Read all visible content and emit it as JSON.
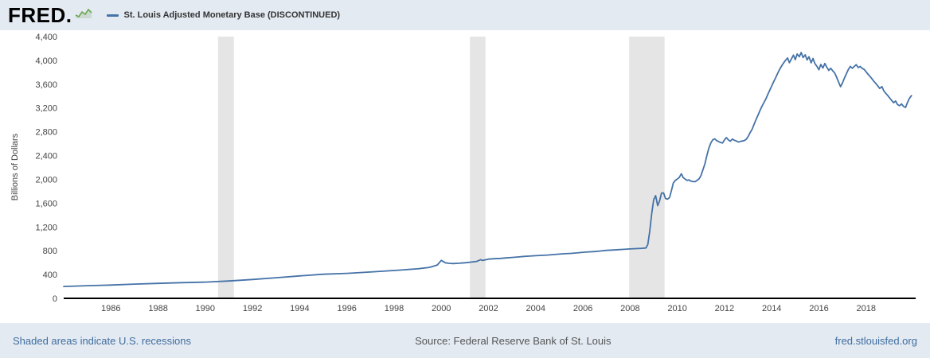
{
  "header": {
    "logo_text": "FRED.",
    "legend": {
      "series_label": "St. Louis Adjusted Monetary Base (DISCONTINUED)"
    }
  },
  "chart_data": {
    "type": "line",
    "title": "St. Louis Adjusted Monetary Base (DISCONTINUED)",
    "ylabel": "Billions of Dollars",
    "xlabel": "",
    "x_range": [
      1984,
      2020.1
    ],
    "ylim": [
      0,
      4400
    ],
    "grid": false,
    "legend_position": "top-left",
    "line_color": "#4572a7",
    "y_ticks": [
      0,
      400,
      800,
      1200,
      1600,
      2000,
      2400,
      2800,
      3200,
      3600,
      4000,
      4400
    ],
    "y_tick_labels": [
      "0",
      "400",
      "800",
      "1,200",
      "1,600",
      "2,000",
      "2,400",
      "2,800",
      "3,200",
      "3,600",
      "4,000",
      "4,400"
    ],
    "x_ticks": [
      1986,
      1988,
      1990,
      1992,
      1994,
      1996,
      1998,
      2000,
      2002,
      2004,
      2006,
      2008,
      2010,
      2012,
      2014,
      2016,
      2018
    ],
    "recession_bands": [
      [
        1990.54,
        1991.21
      ],
      [
        2001.21,
        2001.87
      ],
      [
        2007.96,
        2009.46
      ]
    ],
    "series": [
      {
        "name": "St. Louis Adjusted Monetary Base (DISCONTINUED)",
        "points": [
          [
            1984,
            199
          ],
          [
            1985,
            212
          ],
          [
            1986,
            224
          ],
          [
            1987,
            239
          ],
          [
            1988,
            252
          ],
          [
            1989,
            263
          ],
          [
            1990,
            273
          ],
          [
            1991,
            291
          ],
          [
            1992,
            317
          ],
          [
            1993,
            347
          ],
          [
            1994,
            377
          ],
          [
            1995,
            405
          ],
          [
            1996,
            420
          ],
          [
            1997,
            443
          ],
          [
            1998,
            468
          ],
          [
            1999,
            496
          ],
          [
            1999.5,
            520
          ],
          [
            1999.83,
            560
          ],
          [
            2000,
            638
          ],
          [
            2000.17,
            598
          ],
          [
            2000.33,
            588
          ],
          [
            2000.5,
            584
          ],
          [
            2000.75,
            590
          ],
          [
            2001,
            598
          ],
          [
            2001.25,
            608
          ],
          [
            2001.5,
            620
          ],
          [
            2001.67,
            650
          ],
          [
            2001.75,
            636
          ],
          [
            2002,
            659
          ],
          [
            2002.25,
            666
          ],
          [
            2002.5,
            672
          ],
          [
            2002.75,
            679
          ],
          [
            2003,
            688
          ],
          [
            2003.25,
            696
          ],
          [
            2003.5,
            705
          ],
          [
            2003.75,
            710
          ],
          [
            2004,
            717
          ],
          [
            2004.25,
            722
          ],
          [
            2004.5,
            728
          ],
          [
            2004.75,
            736
          ],
          [
            2005,
            744
          ],
          [
            2005.25,
            750
          ],
          [
            2005.5,
            756
          ],
          [
            2005.75,
            764
          ],
          [
            2006,
            775
          ],
          [
            2006.25,
            781
          ],
          [
            2006.5,
            787
          ],
          [
            2006.75,
            796
          ],
          [
            2007,
            806
          ],
          [
            2007.25,
            812
          ],
          [
            2007.5,
            818
          ],
          [
            2007.75,
            824
          ],
          [
            2008,
            831
          ],
          [
            2008.25,
            836
          ],
          [
            2008.5,
            841
          ],
          [
            2008.67,
            847
          ],
          [
            2008.75,
            905
          ],
          [
            2008.83,
            1128
          ],
          [
            2008.92,
            1435
          ],
          [
            2009,
            1660
          ],
          [
            2009.08,
            1726
          ],
          [
            2009.17,
            1558
          ],
          [
            2009.25,
            1640
          ],
          [
            2009.33,
            1770
          ],
          [
            2009.42,
            1772
          ],
          [
            2009.5,
            1680
          ],
          [
            2009.58,
            1666
          ],
          [
            2009.67,
            1694
          ],
          [
            2009.75,
            1808
          ],
          [
            2009.83,
            1938
          ],
          [
            2009.92,
            1985
          ],
          [
            2010,
            2005
          ],
          [
            2010.08,
            2030
          ],
          [
            2010.17,
            2094
          ],
          [
            2010.25,
            2030
          ],
          [
            2010.33,
            2005
          ],
          [
            2010.42,
            1983
          ],
          [
            2010.5,
            1992
          ],
          [
            2010.58,
            1970
          ],
          [
            2010.67,
            1963
          ],
          [
            2010.75,
            1960
          ],
          [
            2010.83,
            1980
          ],
          [
            2010.92,
            2008
          ],
          [
            2011,
            2062
          ],
          [
            2011.08,
            2152
          ],
          [
            2011.17,
            2260
          ],
          [
            2011.25,
            2396
          ],
          [
            2011.33,
            2518
          ],
          [
            2011.42,
            2610
          ],
          [
            2011.5,
            2664
          ],
          [
            2011.58,
            2682
          ],
          [
            2011.67,
            2652
          ],
          [
            2011.75,
            2636
          ],
          [
            2011.83,
            2620
          ],
          [
            2011.92,
            2612
          ],
          [
            2012,
            2664
          ],
          [
            2012.08,
            2702
          ],
          [
            2012.17,
            2662
          ],
          [
            2012.25,
            2642
          ],
          [
            2012.33,
            2678
          ],
          [
            2012.42,
            2656
          ],
          [
            2012.5,
            2646
          ],
          [
            2012.58,
            2628
          ],
          [
            2012.67,
            2636
          ],
          [
            2012.75,
            2645
          ],
          [
            2012.83,
            2650
          ],
          [
            2012.92,
            2674
          ],
          [
            2013,
            2720
          ],
          [
            2013.08,
            2780
          ],
          [
            2013.17,
            2843
          ],
          [
            2013.25,
            2923
          ],
          [
            2013.33,
            3000
          ],
          [
            2013.42,
            3080
          ],
          [
            2013.5,
            3155
          ],
          [
            2013.58,
            3222
          ],
          [
            2013.67,
            3290
          ],
          [
            2013.75,
            3350
          ],
          [
            2013.83,
            3425
          ],
          [
            2013.92,
            3500
          ],
          [
            2014,
            3570
          ],
          [
            2014.08,
            3640
          ],
          [
            2014.17,
            3710
          ],
          [
            2014.25,
            3780
          ],
          [
            2014.33,
            3845
          ],
          [
            2014.42,
            3905
          ],
          [
            2014.5,
            3955
          ],
          [
            2014.58,
            3998
          ],
          [
            2014.67,
            4042
          ],
          [
            2014.75,
            3962
          ],
          [
            2014.83,
            4022
          ],
          [
            2014.92,
            4088
          ],
          [
            2015,
            4012
          ],
          [
            2015.08,
            4108
          ],
          [
            2015.17,
            4062
          ],
          [
            2015.25,
            4132
          ],
          [
            2015.33,
            4048
          ],
          [
            2015.42,
            4092
          ],
          [
            2015.5,
            4008
          ],
          [
            2015.58,
            4062
          ],
          [
            2015.67,
            3958
          ],
          [
            2015.75,
            4032
          ],
          [
            2015.83,
            3948
          ],
          [
            2015.92,
            3898
          ],
          [
            2016,
            3842
          ],
          [
            2016.08,
            3932
          ],
          [
            2016.17,
            3872
          ],
          [
            2016.25,
            3948
          ],
          [
            2016.33,
            3888
          ],
          [
            2016.42,
            3832
          ],
          [
            2016.5,
            3868
          ],
          [
            2016.58,
            3828
          ],
          [
            2016.67,
            3788
          ],
          [
            2016.75,
            3718
          ],
          [
            2016.83,
            3638
          ],
          [
            2016.92,
            3558
          ],
          [
            2017,
            3622
          ],
          [
            2017.08,
            3702
          ],
          [
            2017.17,
            3782
          ],
          [
            2017.25,
            3848
          ],
          [
            2017.33,
            3898
          ],
          [
            2017.42,
            3868
          ],
          [
            2017.5,
            3898
          ],
          [
            2017.58,
            3928
          ],
          [
            2017.67,
            3878
          ],
          [
            2017.75,
            3898
          ],
          [
            2017.83,
            3868
          ],
          [
            2017.92,
            3848
          ],
          [
            2018,
            3808
          ],
          [
            2018.08,
            3768
          ],
          [
            2018.17,
            3728
          ],
          [
            2018.25,
            3688
          ],
          [
            2018.33,
            3648
          ],
          [
            2018.42,
            3608
          ],
          [
            2018.5,
            3568
          ],
          [
            2018.58,
            3528
          ],
          [
            2018.67,
            3560
          ],
          [
            2018.75,
            3488
          ],
          [
            2018.83,
            3448
          ],
          [
            2018.92,
            3408
          ],
          [
            2019,
            3368
          ],
          [
            2019.08,
            3328
          ],
          [
            2019.17,
            3288
          ],
          [
            2019.25,
            3318
          ],
          [
            2019.33,
            3258
          ],
          [
            2019.42,
            3238
          ],
          [
            2019.5,
            3268
          ],
          [
            2019.58,
            3228
          ],
          [
            2019.67,
            3208
          ],
          [
            2019.75,
            3288
          ],
          [
            2019.83,
            3358
          ],
          [
            2019.92,
            3408
          ]
        ]
      }
    ]
  },
  "footer": {
    "recession_note": "Shaded areas indicate U.S. recessions",
    "source": "Source: Federal Reserve Bank of St. Louis",
    "site": "fred.stlouisfed.org"
  },
  "colors": {
    "page_bg": "#e3eaf2",
    "plot_bg": "#ffffff",
    "line": "#4572a7",
    "recession": "#e5e5e5",
    "axis": "#000000",
    "tick_text": "#444444",
    "link": "#3f6d9e",
    "source_text": "#555555"
  }
}
